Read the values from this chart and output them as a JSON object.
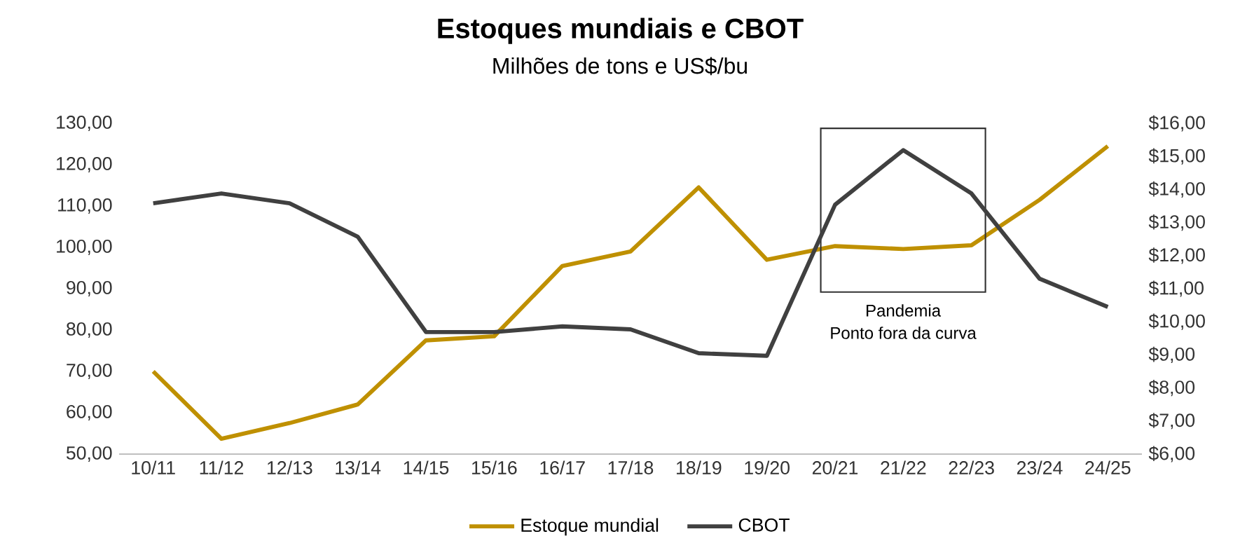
{
  "chart_data": {
    "type": "line",
    "title": "Estoques mundiais e CBOT",
    "subtitle": "Milhões de tons e US$/bu",
    "categories": [
      "10/11",
      "11/12",
      "12/13",
      "13/14",
      "14/15",
      "15/16",
      "16/17",
      "17/18",
      "18/19",
      "19/20",
      "20/21",
      "21/22",
      "22/23",
      "23/24",
      "24/25"
    ],
    "series": [
      {
        "name": "Estoque mundial",
        "color": "#bf9000",
        "values": [
          70,
          53.7,
          57.5,
          62,
          77.5,
          78.5,
          95.5,
          99,
          114.5,
          97,
          100.3,
          99.6,
          100.5,
          111.5,
          124.5
        ]
      },
      {
        "name": "CBOT",
        "color": "#404040",
        "axis": "y2",
        "values": [
          13.58,
          13.88,
          13.58,
          12.57,
          9.69,
          9.69,
          9.86,
          9.77,
          9.05,
          8.97,
          13.54,
          15.19,
          13.88,
          11.3,
          10.45
        ]
      }
    ],
    "ylim": [
      50,
      130
    ],
    "yticks": [
      {
        "value": 50,
        "label": "50,00"
      },
      {
        "value": 60,
        "label": "60,00"
      },
      {
        "value": 70,
        "label": "70,00"
      },
      {
        "value": 80,
        "label": "80,00"
      },
      {
        "value": 90,
        "label": "90,00"
      },
      {
        "value": 100,
        "label": "100,00"
      },
      {
        "value": 110,
        "label": "110,00"
      },
      {
        "value": 120,
        "label": "120,00"
      },
      {
        "value": 130,
        "label": "130,00"
      }
    ],
    "y2lim": [
      6,
      16
    ],
    "y2ticks": [
      {
        "value": 6,
        "label": "$6,00"
      },
      {
        "value": 7,
        "label": "$7,00"
      },
      {
        "value": 8,
        "label": "$8,00"
      },
      {
        "value": 9,
        "label": "$9,00"
      },
      {
        "value": 10,
        "label": "$10,00"
      },
      {
        "value": 11,
        "label": "$11,00"
      },
      {
        "value": 12,
        "label": "$12,00"
      },
      {
        "value": 13,
        "label": "$13,00"
      },
      {
        "value": 14,
        "label": "$14,00"
      },
      {
        "value": 15,
        "label": "$15,00"
      },
      {
        "value": 16,
        "label": "$16,00"
      }
    ],
    "annotations": [
      "Pandemia",
      "Ponto fora da curva"
    ],
    "legend": "bottom",
    "grid": false,
    "marker": "none",
    "line_style": "solid"
  }
}
